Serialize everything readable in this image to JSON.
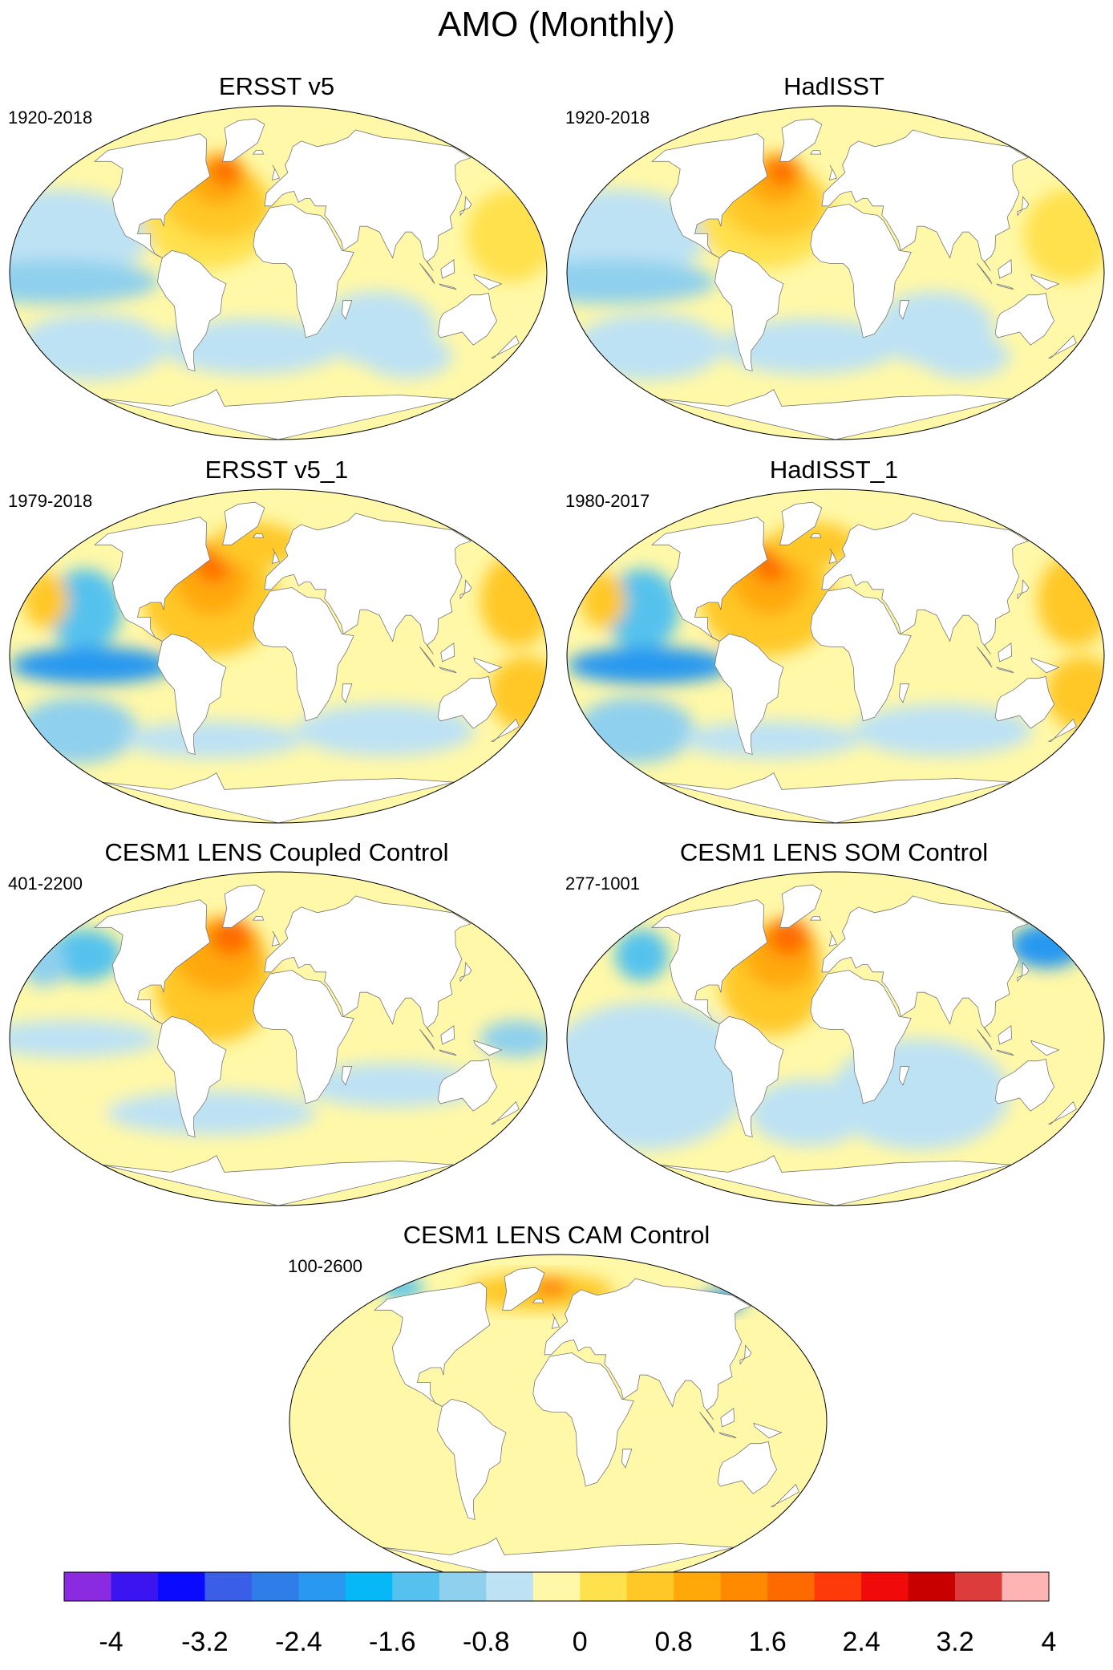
{
  "title": "AMO (Monthly)",
  "panels": [
    {
      "title": "ERSST v5",
      "period": "1920-2018",
      "style": "obs_long"
    },
    {
      "title": "HadISST",
      "period": "1920-2018",
      "style": "obs_long"
    },
    {
      "title": "ERSST v5_1",
      "period": "1979-2018",
      "style": "obs_short"
    },
    {
      "title": "HadISST_1",
      "period": "1980-2017",
      "style": "obs_short"
    },
    {
      "title": "CESM1 LENS Coupled Control",
      "period": "401-2200",
      "style": "coupled"
    },
    {
      "title": "CESM1 LENS SOM Control",
      "period": "277-1001",
      "style": "som"
    },
    {
      "title": "CESM1 LENS CAM Control",
      "period": "100-2600",
      "style": "cam"
    }
  ],
  "colorbar": {
    "labels": [
      "-4",
      "-3.2",
      "-2.4",
      "-1.6",
      "-0.8",
      "0",
      "0.8",
      "1.6",
      "2.4",
      "3.2",
      "4"
    ],
    "colors": [
      "#8a2be2",
      "#3c14f0",
      "#0a0aff",
      "#3a5ee8",
      "#2e7de8",
      "#2898f0",
      "#06b8f5",
      "#55c2ee",
      "#8fd0ee",
      "#bde2f4",
      "#fff8a8",
      "#ffe14d",
      "#ffc826",
      "#ffa80a",
      "#ff8a00",
      "#ff6a00",
      "#ff3a0a",
      "#f00a0a",
      "#c80000",
      "#dc3c3c",
      "#ffb4b4"
    ]
  }
}
